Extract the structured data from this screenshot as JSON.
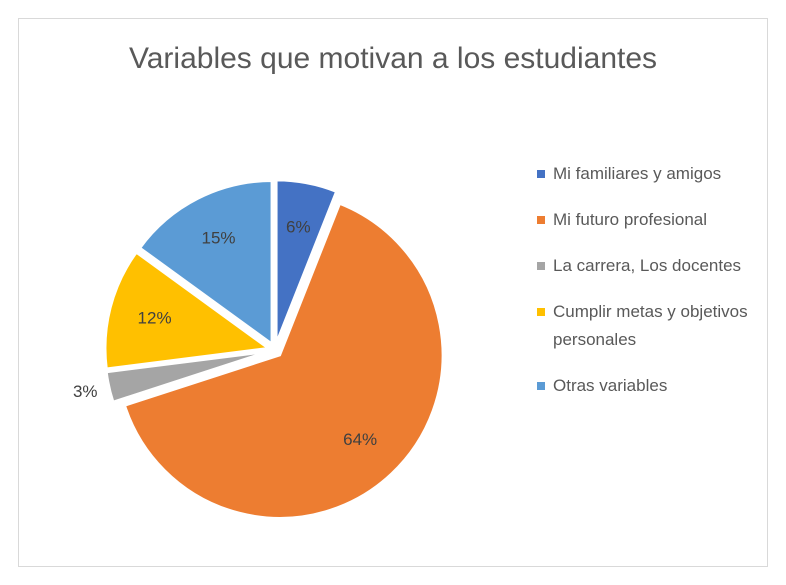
{
  "chart_data": {
    "type": "pie",
    "title": "Variables que motivan a los estudiantes",
    "categories": [
      "Mi familiares y amigos",
      "Mi futuro profesional",
      "La carrera, Los docentes",
      "Cumplir metas y objetivos personales",
      "Otras variables"
    ],
    "values": [
      6,
      64,
      3,
      12,
      15
    ],
    "value_labels": [
      "6%",
      "64%",
      "3%",
      "12%",
      "15%"
    ],
    "colors": [
      "#4472c4",
      "#ed7d31",
      "#a5a5a5",
      "#ffc000",
      "#5b9bd5"
    ],
    "legend": "right"
  }
}
